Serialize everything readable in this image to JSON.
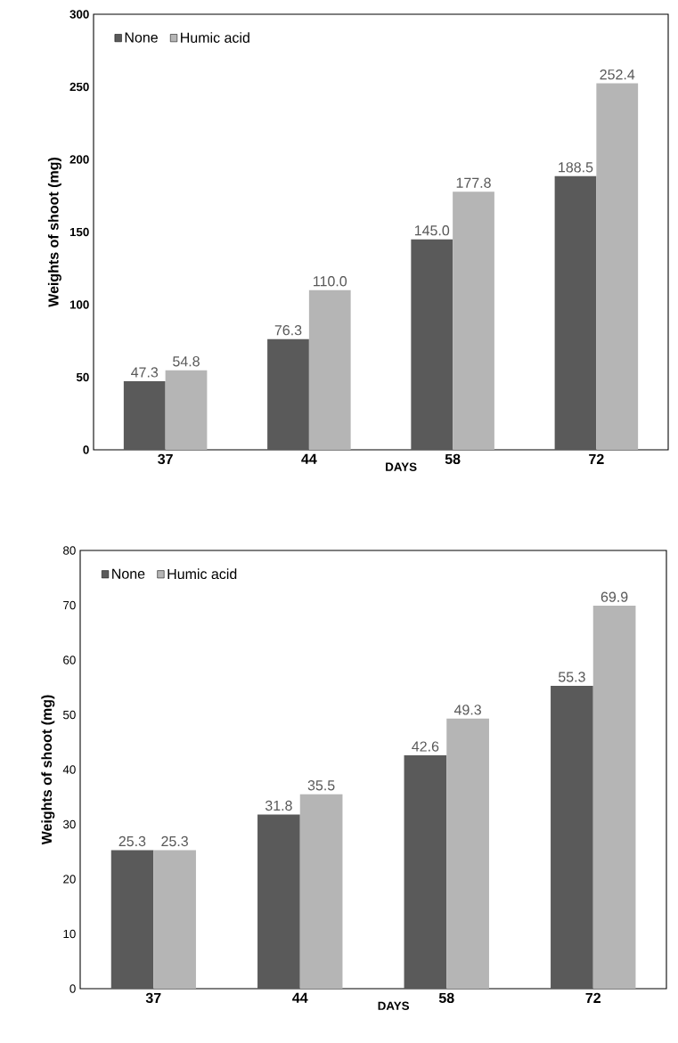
{
  "chart_data": [
    {
      "type": "bar",
      "categories": [
        "37",
        "44",
        "58",
        "72"
      ],
      "xlabel": "DAYS",
      "ylabel": "Weights of shoot (mg)",
      "ylim": [
        0,
        300
      ],
      "yticks": [
        0,
        50,
        100,
        150,
        200,
        250,
        300
      ],
      "legend": "top left",
      "series": [
        {
          "name": "None",
          "color": "#5a5a5a",
          "values": [
            47.3,
            76.3,
            145.0,
            188.5
          ],
          "value_labels": [
            "47.3",
            "76.3",
            "145.0",
            "188.5"
          ]
        },
        {
          "name": "Humic acid",
          "color": "#b5b5b5",
          "values": [
            54.8,
            110.0,
            177.8,
            252.4
          ],
          "value_labels": [
            "54.8",
            "110.0",
            "177.8",
            "252.4"
          ]
        }
      ]
    },
    {
      "type": "bar",
      "categories": [
        "37",
        "44",
        "58",
        "72"
      ],
      "xlabel": "DAYS",
      "ylabel": "Weights of shoot (mg)",
      "ylim": [
        0,
        80
      ],
      "yticks": [
        0,
        10,
        20,
        30,
        40,
        50,
        60,
        70,
        80
      ],
      "legend": "top left",
      "series": [
        {
          "name": "None",
          "color": "#5a5a5a",
          "values": [
            25.3,
            31.8,
            42.6,
            55.3
          ],
          "value_labels": [
            "25.3",
            "31.8",
            "42.6",
            "55.3"
          ]
        },
        {
          "name": "Humic acid",
          "color": "#b5b5b5",
          "values": [
            25.3,
            35.5,
            49.3,
            69.9
          ],
          "value_labels": [
            "25.3",
            "35.5",
            "49.3",
            "69.9"
          ]
        }
      ]
    }
  ]
}
